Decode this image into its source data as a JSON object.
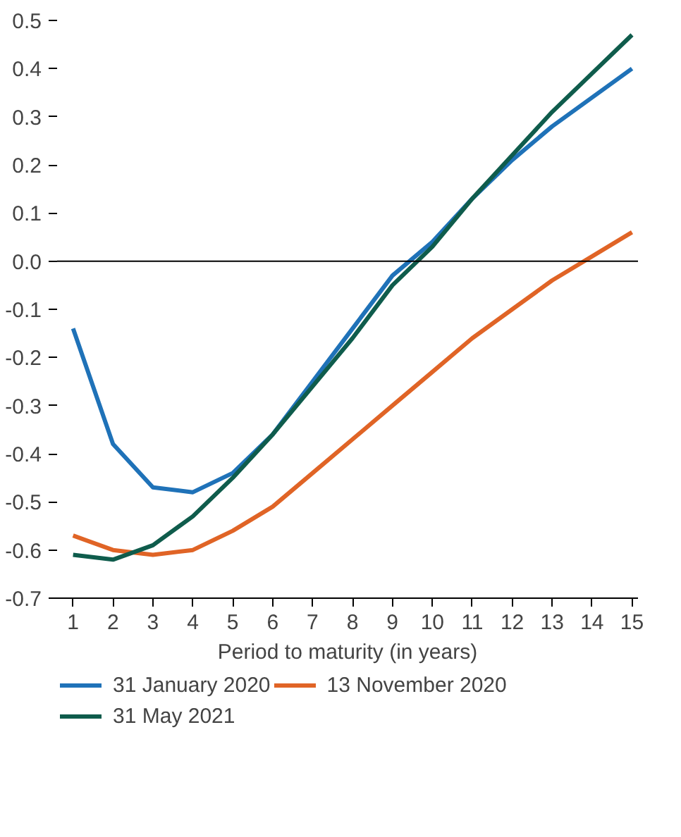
{
  "chart_data": {
    "type": "line",
    "xlabel": "Period to maturity (in years)",
    "x": [
      1,
      2,
      3,
      4,
      5,
      6,
      7,
      8,
      9,
      10,
      11,
      12,
      13,
      14,
      15
    ],
    "series": [
      {
        "name": "31 January 2020",
        "color": "#1f72b8",
        "values": [
          -0.14,
          -0.38,
          -0.47,
          -0.48,
          -0.44,
          -0.36,
          -0.25,
          -0.14,
          -0.03,
          0.04,
          0.13,
          0.21,
          0.28,
          0.34,
          0.4
        ]
      },
      {
        "name": "13 November 2020",
        "color": "#e06426",
        "values": [
          -0.57,
          -0.6,
          -0.61,
          -0.6,
          -0.56,
          -0.51,
          -0.44,
          -0.37,
          -0.3,
          -0.23,
          -0.16,
          -0.1,
          -0.04,
          0.01,
          0.06
        ]
      },
      {
        "name": "31 May 2021",
        "color": "#0f5c4c",
        "values": [
          -0.61,
          -0.62,
          -0.59,
          -0.53,
          -0.45,
          -0.36,
          -0.26,
          -0.16,
          -0.05,
          0.03,
          0.13,
          0.22,
          0.31,
          0.39,
          0.47
        ]
      }
    ],
    "xlim": [
      0.6,
      15.15
    ],
    "ylim": [
      -0.7,
      0.5
    ],
    "xticks": [
      1,
      2,
      3,
      4,
      5,
      6,
      7,
      8,
      9,
      10,
      11,
      12,
      13,
      14,
      15
    ],
    "yticks": [
      {
        "value": -0.7,
        "label": "-0.7"
      },
      {
        "value": -0.6,
        "label": "-0.6"
      },
      {
        "value": -0.5,
        "label": "-0.5"
      },
      {
        "value": -0.4,
        "label": "-0.4"
      },
      {
        "value": -0.3,
        "label": "-0.3"
      },
      {
        "value": -0.2,
        "label": "-0.2"
      },
      {
        "value": -0.1,
        "label": "-0.1"
      },
      {
        "value": 0,
        "label": "0.0"
      },
      {
        "value": 0.1,
        "label": "0.1"
      },
      {
        "value": 0.2,
        "label": "0.2"
      },
      {
        "value": 0.3,
        "label": "0.3"
      },
      {
        "value": 0.4,
        "label": "0.4"
      },
      {
        "value": 0.5,
        "label": "0.5"
      }
    ],
    "ref_lines": [
      {
        "axis": "y",
        "value": 0,
        "color": "#000000"
      }
    ],
    "grid": false,
    "legend": "bottom",
    "line_style": "solid",
    "marker": "none"
  }
}
